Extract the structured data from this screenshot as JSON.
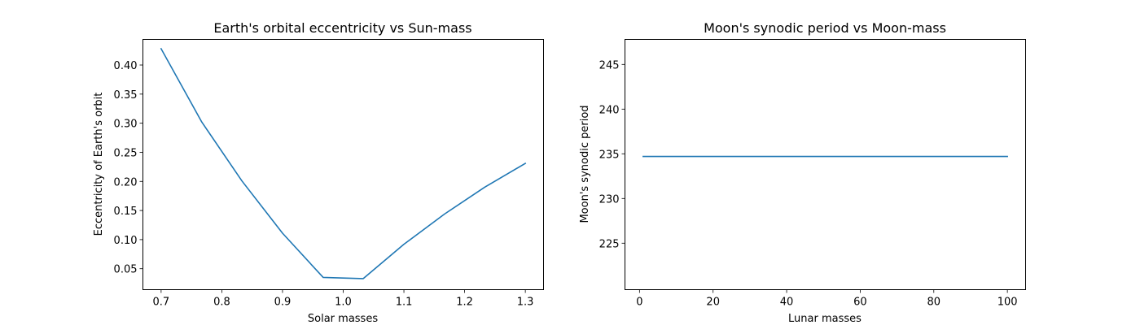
{
  "chart_data": [
    {
      "type": "line",
      "title": "Earth's orbital eccentricity vs Sun-mass",
      "xlabel": "Solar masses",
      "ylabel": "Eccentricity of Earth's orbit",
      "xlim": [
        0.67,
        1.33
      ],
      "ylim": [
        0.014,
        0.444
      ],
      "xticks": [
        0.7,
        0.8,
        0.9,
        1.0,
        1.1,
        1.2,
        1.3
      ],
      "xtick_labels": [
        "0.7",
        "0.8",
        "0.9",
        "1.0",
        "1.1",
        "1.2",
        "1.3"
      ],
      "yticks": [
        0.05,
        0.1,
        0.15,
        0.2,
        0.25,
        0.3,
        0.35,
        0.4
      ],
      "ytick_labels": [
        "0.05",
        "0.10",
        "0.15",
        "0.20",
        "0.25",
        "0.30",
        "0.35",
        "0.40"
      ],
      "grid": false,
      "color": "#1f77b4",
      "series": [
        {
          "x": [
            0.7,
            0.767,
            0.833,
            0.9,
            0.967,
            1.033,
            1.1,
            1.167,
            1.233,
            1.3
          ],
          "y": [
            0.428,
            0.302,
            0.201,
            0.111,
            0.035,
            0.033,
            0.092,
            0.144,
            0.19,
            0.231
          ]
        }
      ]
    },
    {
      "type": "line",
      "title": "Moon's synodic period vs Moon-mass",
      "xlabel": "Lunar masses",
      "ylabel": "Moon's synodic period",
      "xlim": [
        -3.95,
        104.95
      ],
      "ylim": [
        219.8,
        247.8
      ],
      "xticks": [
        0,
        20,
        40,
        60,
        80,
        100
      ],
      "xtick_labels": [
        "0",
        "20",
        "40",
        "60",
        "80",
        "100"
      ],
      "yticks": [
        225,
        230,
        235,
        240,
        245
      ],
      "ytick_labels": [
        "225",
        "230",
        "235",
        "240",
        "245"
      ],
      "grid": false,
      "color": "#1f77b4",
      "series": [
        {
          "x": [
            1,
            100
          ],
          "y": [
            234.7,
            234.7
          ]
        }
      ]
    }
  ]
}
